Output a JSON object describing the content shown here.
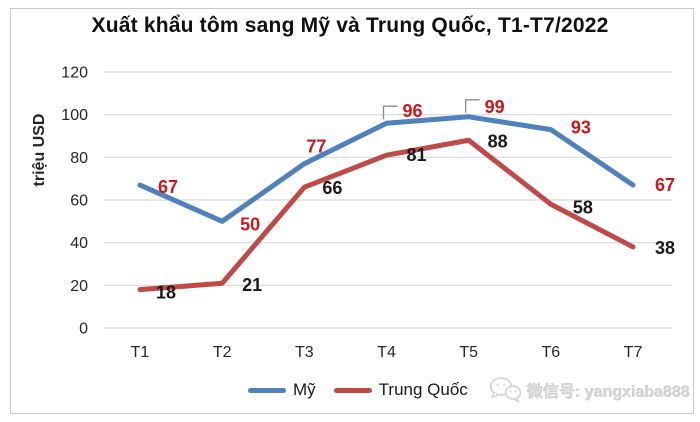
{
  "chart_data": {
    "type": "line",
    "title": "Xuất khẩu tôm sang Mỹ và Trung Quốc, T1-T7/2022",
    "xlabel": "",
    "ylabel": "triệu USD",
    "categories": [
      "T1",
      "T2",
      "T3",
      "T4",
      "T5",
      "T6",
      "T7"
    ],
    "series": [
      {
        "name": "Mỹ",
        "values": [
          67,
          50,
          77,
          96,
          99,
          93,
          67
        ],
        "color": "#4F81BD",
        "label_color": "#C8191C"
      },
      {
        "name": "Trung Quốc",
        "values": [
          18,
          21,
          66,
          81,
          88,
          58,
          38
        ],
        "color": "#BE4B48",
        "label_color": "#1A1A1A"
      }
    ],
    "ylim": [
      0,
      120
    ],
    "ytick_step": 20,
    "grid": "horizontal",
    "legend_position": "bottom",
    "layout": {
      "label_offsets": [
        [
          [
            18,
            2,
            "start"
          ],
          [
            18,
            3,
            "start"
          ],
          [
            12,
            -17,
            "middle"
          ],
          [
            16,
            -12,
            "start"
          ],
          [
            16,
            -10,
            "start"
          ],
          [
            20,
            -2,
            "start"
          ],
          [
            22,
            0,
            "start"
          ]
        ],
        [
          [
            16,
            3,
            "start"
          ],
          [
            20,
            2,
            "start"
          ],
          [
            18,
            1,
            "start"
          ],
          [
            20,
            0,
            "start"
          ],
          [
            19,
            1,
            "start"
          ],
          [
            22,
            3,
            "start"
          ],
          [
            22,
            1,
            "start"
          ]
        ]
      ],
      "leader_indices": [
        [
          3,
          4
        ],
        []
      ]
    }
  },
  "watermark": {
    "icon": "wechat-icon",
    "text": "微信号: yangxiaba888"
  },
  "colors": {
    "grid": "#D9D9D9",
    "frame": "#C9C9C9",
    "axis_text": "#262626",
    "leader": "#8C8C8C",
    "watermark": "#D4D4D4"
  }
}
